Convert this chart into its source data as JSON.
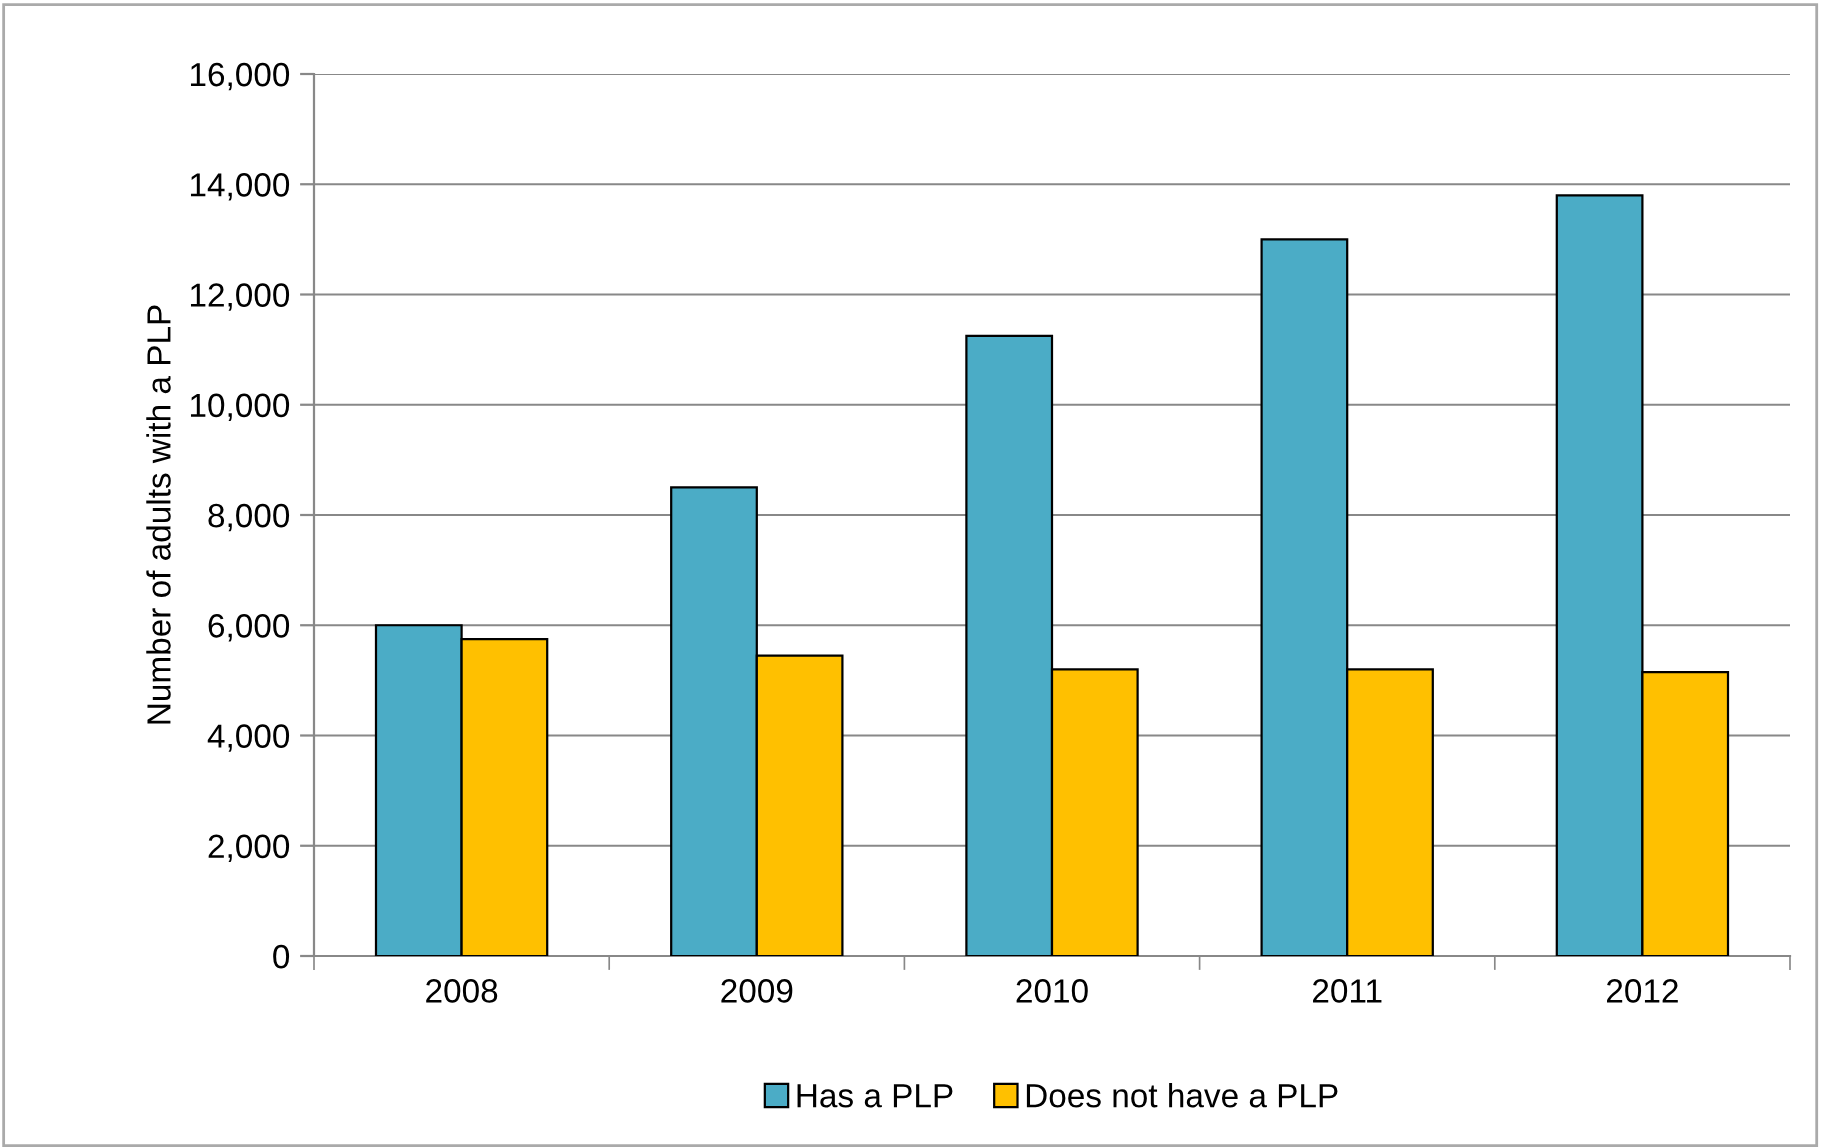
{
  "chart_data": {
    "type": "bar",
    "ylabel": "Number of adults with a PLP",
    "categories": [
      "2008",
      "2009",
      "2010",
      "2011",
      "2012"
    ],
    "series": [
      {
        "name": "Has a PLP",
        "color": "#4bacc6",
        "values": [
          6000,
          8500,
          11250,
          13000,
          13800
        ]
      },
      {
        "name": "Does not have a PLP",
        "color": "#ffc000",
        "values": [
          5750,
          5450,
          5200,
          5200,
          5150
        ]
      }
    ],
    "ylim": [
      0,
      16000
    ],
    "yticks": [
      {
        "value": 0,
        "label": "0"
      },
      {
        "value": 2000,
        "label": "2,000"
      },
      {
        "value": 4000,
        "label": "4,000"
      },
      {
        "value": 6000,
        "label": "6,000"
      },
      {
        "value": 8000,
        "label": "8,000"
      },
      {
        "value": 10000,
        "label": "10,000"
      },
      {
        "value": 12000,
        "label": "12,000"
      },
      {
        "value": 14000,
        "label": "14,000"
      },
      {
        "value": 16000,
        "label": "16,000"
      }
    ],
    "grid": "y",
    "legend": "bottom"
  }
}
